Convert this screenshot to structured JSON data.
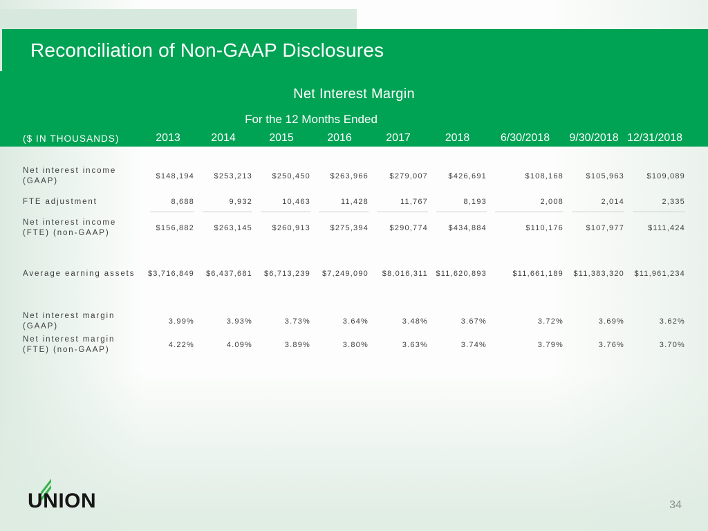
{
  "slide": {
    "title": "Reconciliation of Non-GAAP Disclosures",
    "page_number": "34",
    "logo_text": "UNION"
  },
  "table": {
    "title": "Net Interest Margin",
    "subtitle": "For the 12 Months Ended",
    "unit_label": "($ IN THOUSANDS)",
    "columns": [
      "2013",
      "2014",
      "2015",
      "2016",
      "2017",
      "2018",
      "6/30/2018",
      "9/30/2018",
      "12/31/2018"
    ],
    "rows": [
      {
        "label_lines": [
          "Net interest income",
          "(GAAP)"
        ],
        "values": [
          "$148,194",
          "$253,213",
          "$250,450",
          "$263,966",
          "$279,007",
          "$426,691",
          "$108,168",
          "$105,963",
          "$109,089"
        ]
      },
      {
        "label_lines": [
          "FTE adjustment"
        ],
        "values": [
          "8,688",
          "9,932",
          "10,463",
          "11,428",
          "11,767",
          "8,193",
          "2,008",
          "2,014",
          "2,335"
        ]
      },
      {
        "label_lines": [
          "Net interest income",
          "(FTE) (non-GAAP)"
        ],
        "values": [
          "$156,882",
          "$263,145",
          "$260,913",
          "$275,394",
          "$290,774",
          "$434,884",
          "$110,176",
          "$107,977",
          "$111,424"
        ]
      },
      {
        "label_lines": [
          "Average earning assets"
        ],
        "values": [
          "$3,716,849",
          "$6,437,681",
          "$6,713,239",
          "$7,249,090",
          "$8,016,311",
          "$11,620,893",
          "$11,661,189",
          "$11,383,320",
          "$11,961,234"
        ]
      },
      {
        "label_lines": [
          "Net interest margin",
          "(GAAP)"
        ],
        "values": [
          "3.99%",
          "3.93%",
          "3.73%",
          "3.64%",
          "3.48%",
          "3.67%",
          "3.72%",
          "3.69%",
          "3.62%"
        ]
      },
      {
        "label_lines": [
          "Net interest margin",
          "(FTE) (non-GAAP)"
        ],
        "values": [
          "4.22%",
          "4.09%",
          "3.89%",
          "3.80%",
          "3.63%",
          "3.74%",
          "3.79%",
          "3.76%",
          "3.70%"
        ]
      }
    ]
  },
  "colors": {
    "brand_green": "#00A254",
    "pale_green_strip": "#D7E9DE",
    "logo_green": "#35B44C",
    "table_text": "#3E3E3E",
    "page_number_gray": "#8A918A"
  }
}
